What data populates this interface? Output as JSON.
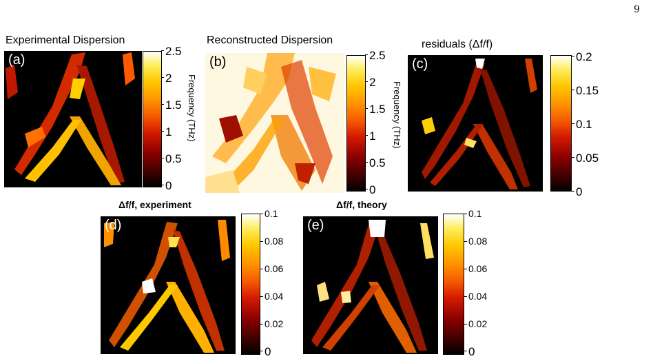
{
  "page_number": "9",
  "panels": [
    {
      "id": "a",
      "label": "(a)",
      "title": "Experimental Dispersion",
      "title_bold": false,
      "colorbar": {
        "ticks": [
          "2.5",
          "2",
          "1.5",
          "1",
          "0.5",
          "0"
        ],
        "label": "Frequency (THz)"
      }
    },
    {
      "id": "b",
      "label": "(b)",
      "title": "Reconstructed Dispersion",
      "title_bold": false,
      "colorbar": {
        "ticks": [
          "2.5",
          "2",
          "1.5",
          "1",
          "0.5",
          "0"
        ],
        "label": "Frequency (THz)"
      }
    },
    {
      "id": "c",
      "label": "(c)",
      "title": "residuals (Δf/f)",
      "title_bold": false,
      "colorbar": {
        "ticks": [
          "0.2",
          "0.15",
          "0.1",
          "0.05",
          "0"
        ],
        "label": ""
      }
    },
    {
      "id": "d",
      "label": "(d)",
      "title": "Δf/f, experiment",
      "title_bold": true,
      "colorbar": {
        "ticks": [
          "0.1",
          "0.08",
          "0.06",
          "0.04",
          "0.02",
          "0"
        ],
        "label": ""
      }
    },
    {
      "id": "e",
      "label": "(e)",
      "title": "Δf/f, theory",
      "title_bold": true,
      "colorbar": {
        "ticks": [
          "0.1",
          "0.08",
          "0.06",
          "0.04",
          "0.02",
          "0"
        ],
        "label": ""
      }
    }
  ]
}
